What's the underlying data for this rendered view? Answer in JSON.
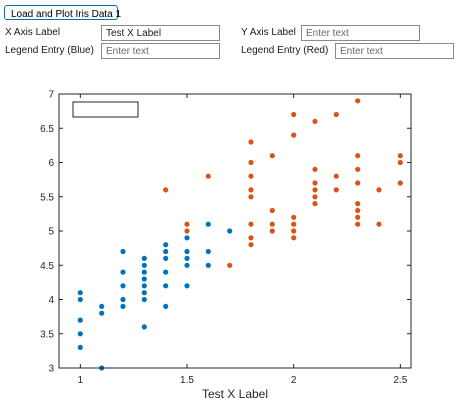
{
  "controls": {
    "load_button": "Load and Plot Iris Data 1",
    "x_axis_label": "X Axis Label",
    "x_axis_value": "Test X Label",
    "y_axis_label": "Y Axis Label",
    "y_axis_placeholder": "Enter text",
    "legend_blue_label": "Legend Entry (Blue)",
    "legend_blue_placeholder": "Enter text",
    "legend_red_label": "Legend Entry (Red)",
    "legend_red_placeholder": "Enter text"
  },
  "colors": {
    "blue": "#0072bd",
    "red": "#d95319"
  },
  "chart_data": {
    "type": "scatter",
    "xlabel": "Test X Label",
    "ylabel": "",
    "xlim": [
      0.9,
      2.55
    ],
    "ylim": [
      3,
      7
    ],
    "xticks": [
      1,
      1.5,
      2,
      2.5
    ],
    "xtick_labels": [
      "1",
      "1.5",
      "2",
      "2.5"
    ],
    "yticks": [
      3,
      3.5,
      4,
      4.5,
      5,
      5.5,
      6,
      6.5,
      7
    ],
    "ytick_labels": [
      "3",
      "3.5",
      "4",
      "4.5",
      "5",
      "5.5",
      "6",
      "6.5",
      "7"
    ],
    "grid": false,
    "legend": {
      "placement": "top-left",
      "entries": []
    },
    "series": [
      {
        "color": "#0072bd",
        "points": [
          [
            1.0,
            4.1
          ],
          [
            1.0,
            4.0
          ],
          [
            1.0,
            3.7
          ],
          [
            1.0,
            3.5
          ],
          [
            1.0,
            3.3
          ],
          [
            1.1,
            3.0
          ],
          [
            1.1,
            3.9
          ],
          [
            1.1,
            3.8
          ],
          [
            1.2,
            4.7
          ],
          [
            1.2,
            4.4
          ],
          [
            1.2,
            4.0
          ],
          [
            1.2,
            3.9
          ],
          [
            1.2,
            4.2
          ],
          [
            1.3,
            4.6
          ],
          [
            1.3,
            4.5
          ],
          [
            1.3,
            4.4
          ],
          [
            1.3,
            4.3
          ],
          [
            1.3,
            4.2
          ],
          [
            1.3,
            4.1
          ],
          [
            1.3,
            4.0
          ],
          [
            1.3,
            3.6
          ],
          [
            1.4,
            4.8
          ],
          [
            1.4,
            4.7
          ],
          [
            1.4,
            4.6
          ],
          [
            1.4,
            4.4
          ],
          [
            1.4,
            4.2
          ],
          [
            1.4,
            3.9
          ],
          [
            1.5,
            4.9
          ],
          [
            1.5,
            4.7
          ],
          [
            1.5,
            4.6
          ],
          [
            1.5,
            4.5
          ],
          [
            1.5,
            4.2
          ],
          [
            1.6,
            5.1
          ],
          [
            1.6,
            4.7
          ],
          [
            1.6,
            4.5
          ],
          [
            1.7,
            5.0
          ]
        ]
      },
      {
        "color": "#d95319",
        "points": [
          [
            1.4,
            5.6
          ],
          [
            1.5,
            5.1
          ],
          [
            1.5,
            5.0
          ],
          [
            1.6,
            5.8
          ],
          [
            1.7,
            4.5
          ],
          [
            1.8,
            6.3
          ],
          [
            1.8,
            6.0
          ],
          [
            1.8,
            5.8
          ],
          [
            1.8,
            5.6
          ],
          [
            1.8,
            5.5
          ],
          [
            1.8,
            5.1
          ],
          [
            1.8,
            4.9
          ],
          [
            1.8,
            4.8
          ],
          [
            1.9,
            6.1
          ],
          [
            1.9,
            5.3
          ],
          [
            1.9,
            5.1
          ],
          [
            1.9,
            5.0
          ],
          [
            2.0,
            6.7
          ],
          [
            2.0,
            6.4
          ],
          [
            2.0,
            5.2
          ],
          [
            2.0,
            5.1
          ],
          [
            2.0,
            5.0
          ],
          [
            2.0,
            4.9
          ],
          [
            2.1,
            6.6
          ],
          [
            2.1,
            5.9
          ],
          [
            2.1,
            5.7
          ],
          [
            2.1,
            5.6
          ],
          [
            2.1,
            5.5
          ],
          [
            2.1,
            5.4
          ],
          [
            2.2,
            6.7
          ],
          [
            2.2,
            5.8
          ],
          [
            2.2,
            5.6
          ],
          [
            2.3,
            6.9
          ],
          [
            2.3,
            6.1
          ],
          [
            2.3,
            5.9
          ],
          [
            2.3,
            5.7
          ],
          [
            2.3,
            5.4
          ],
          [
            2.3,
            5.3
          ],
          [
            2.3,
            5.2
          ],
          [
            2.3,
            5.1
          ],
          [
            2.4,
            5.6
          ],
          [
            2.4,
            5.1
          ],
          [
            2.5,
            6.1
          ],
          [
            2.5,
            6.0
          ],
          [
            2.5,
            5.7
          ]
        ]
      }
    ]
  }
}
